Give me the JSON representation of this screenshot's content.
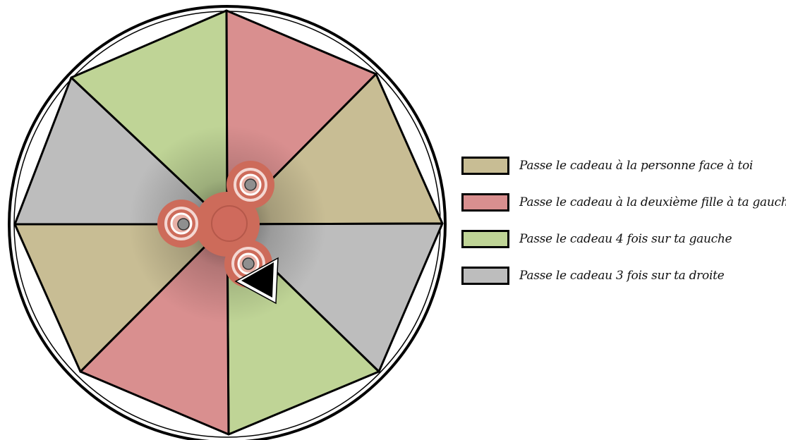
{
  "wheel": {
    "sectors": [
      {
        "category": "rouge"
      },
      {
        "category": "beige"
      },
      {
        "category": "gris"
      },
      {
        "category": "vert"
      },
      {
        "category": "rouge"
      },
      {
        "category": "beige"
      },
      {
        "category": "gris"
      },
      {
        "category": "vert"
      }
    ]
  },
  "colors": {
    "beige": "#c8bd94",
    "rouge": "#d98f8f",
    "vert": "#bfd496",
    "gris": "#bdbdbd",
    "spinner": "#cd6b5a",
    "outline": "#000000"
  },
  "legend": [
    {
      "category": "beige",
      "label": "Passe le cadeau à la personne face à toi"
    },
    {
      "category": "rouge",
      "label": "Passe le cadeau à la deuxième fille à ta gauche"
    },
    {
      "category": "vert",
      "label": "Passe le cadeau 4 fois sur ta gauche"
    },
    {
      "category": "gris",
      "label": "Passe le cadeau 3 fois sur ta droite"
    }
  ],
  "spinner": {
    "icon": "fidget-spinner-icon"
  },
  "pointer": {
    "icon": "triangle-pointer-icon"
  }
}
